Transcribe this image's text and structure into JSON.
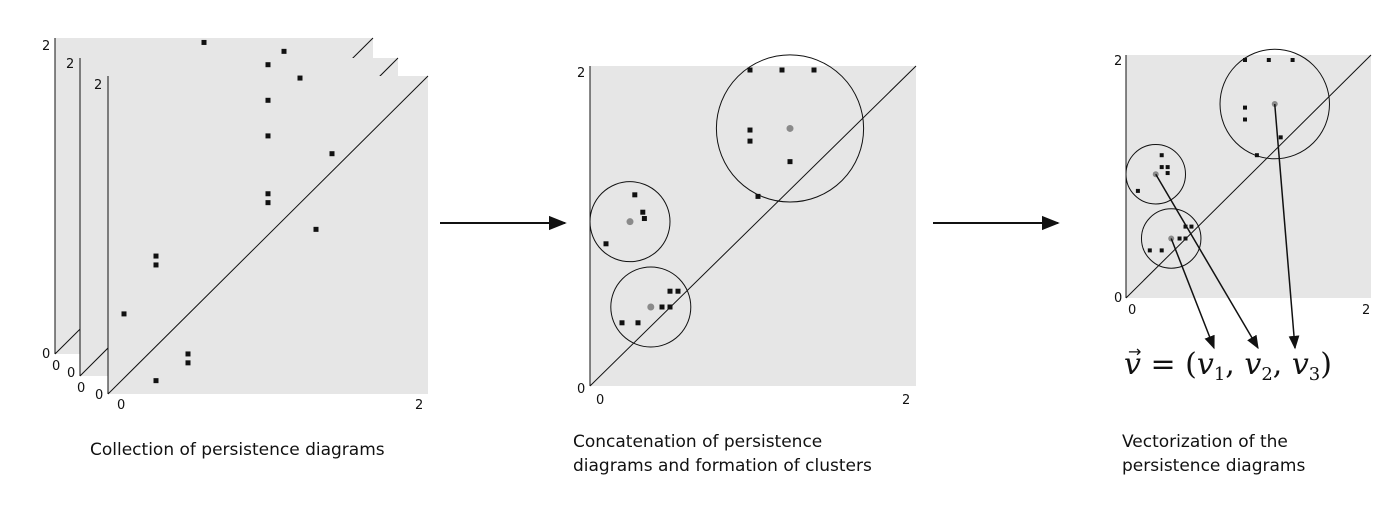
{
  "panels": {
    "stack": {
      "caption": "Collection of persistence diagrams",
      "axis_ticks": {
        "x_min": "0",
        "x_max": "2",
        "y_min": "0",
        "y_max": "2"
      },
      "points": [
        [
          0.3,
          0.15
        ],
        [
          0.5,
          0.35
        ],
        [
          0.5,
          0.45
        ],
        [
          0.1,
          0.9
        ],
        [
          0.3,
          1.55
        ],
        [
          0.3,
          1.45
        ],
        [
          1.3,
          1.85
        ],
        [
          1.0,
          2.15
        ],
        [
          1.0,
          2.25
        ],
        [
          1.4,
          2.7
        ],
        [
          1.0,
          2.9
        ],
        [
          1.0,
          3.3
        ],
        [
          1.2,
          3.55
        ],
        [
          1.0,
          3.7
        ],
        [
          1.1,
          3.85
        ],
        [
          0.6,
          3.95
        ]
      ]
    },
    "concatenated": {
      "caption_lines": [
        "Concatenation of persistence",
        "diagrams and formation of clusters"
      ],
      "axis_ticks": {
        "x_min": "0",
        "x_max": "2",
        "y_min": "0",
        "y_max": "2"
      },
      "points": [
        [
          0.1,
          0.9
        ],
        [
          0.28,
          1.21
        ],
        [
          0.33,
          1.1
        ],
        [
          0.34,
          1.06
        ],
        [
          0.2,
          0.4
        ],
        [
          0.3,
          0.4
        ],
        [
          0.45,
          0.5
        ],
        [
          0.5,
          0.5
        ],
        [
          0.5,
          0.6
        ],
        [
          0.55,
          0.6
        ],
        [
          1.05,
          1.2
        ],
        [
          1.25,
          1.42
        ],
        [
          1.0,
          1.55
        ],
        [
          1.0,
          1.62
        ],
        [
          1.0,
          2.0
        ],
        [
          1.2,
          2.0
        ],
        [
          1.4,
          2.0
        ]
      ],
      "clusters": [
        {
          "center": [
            0.25,
            1.04
          ],
          "radius": 0.25
        },
        {
          "center": [
            0.38,
            0.5
          ],
          "radius": 0.25
        },
        {
          "center": [
            1.25,
            1.63
          ],
          "radius": 0.46
        }
      ]
    },
    "vectorized": {
      "caption_lines": [
        "Vectorization of the",
        "persistence diagrams"
      ],
      "axis_ticks": {
        "x_min": "0",
        "x_max": "2",
        "y_min": "0",
        "y_max": "2"
      },
      "points": [
        [
          0.1,
          0.9
        ],
        [
          0.3,
          1.2
        ],
        [
          0.3,
          1.1
        ],
        [
          0.35,
          1.05
        ],
        [
          0.35,
          1.1
        ],
        [
          0.2,
          0.4
        ],
        [
          0.3,
          0.4
        ],
        [
          0.45,
          0.5
        ],
        [
          0.5,
          0.5
        ],
        [
          0.5,
          0.6
        ],
        [
          0.55,
          0.6
        ],
        [
          1.1,
          1.2
        ],
        [
          1.3,
          1.35
        ],
        [
          1.0,
          1.5
        ],
        [
          1.0,
          1.6
        ],
        [
          1.0,
          2.0
        ],
        [
          1.2,
          2.0
        ],
        [
          1.4,
          2.0
        ]
      ],
      "clusters": [
        {
          "center": [
            0.25,
            1.04
          ],
          "radius": 0.25
        },
        {
          "center": [
            0.38,
            0.5
          ],
          "radius": 0.25
        },
        {
          "center": [
            1.25,
            1.63
          ],
          "radius": 0.46
        }
      ],
      "vector_formula": {
        "symbol": "v",
        "open": " = (",
        "components": [
          "v",
          "v",
          "v"
        ],
        "subscripts": [
          "1",
          "2",
          "3"
        ],
        "separators": [
          ", ",
          ", "
        ],
        "close": ")"
      }
    }
  },
  "colors": {
    "plot_bg": "#e6e6e6",
    "point": "#111111",
    "centroid": "#8a8a8a",
    "line": "#111111"
  }
}
